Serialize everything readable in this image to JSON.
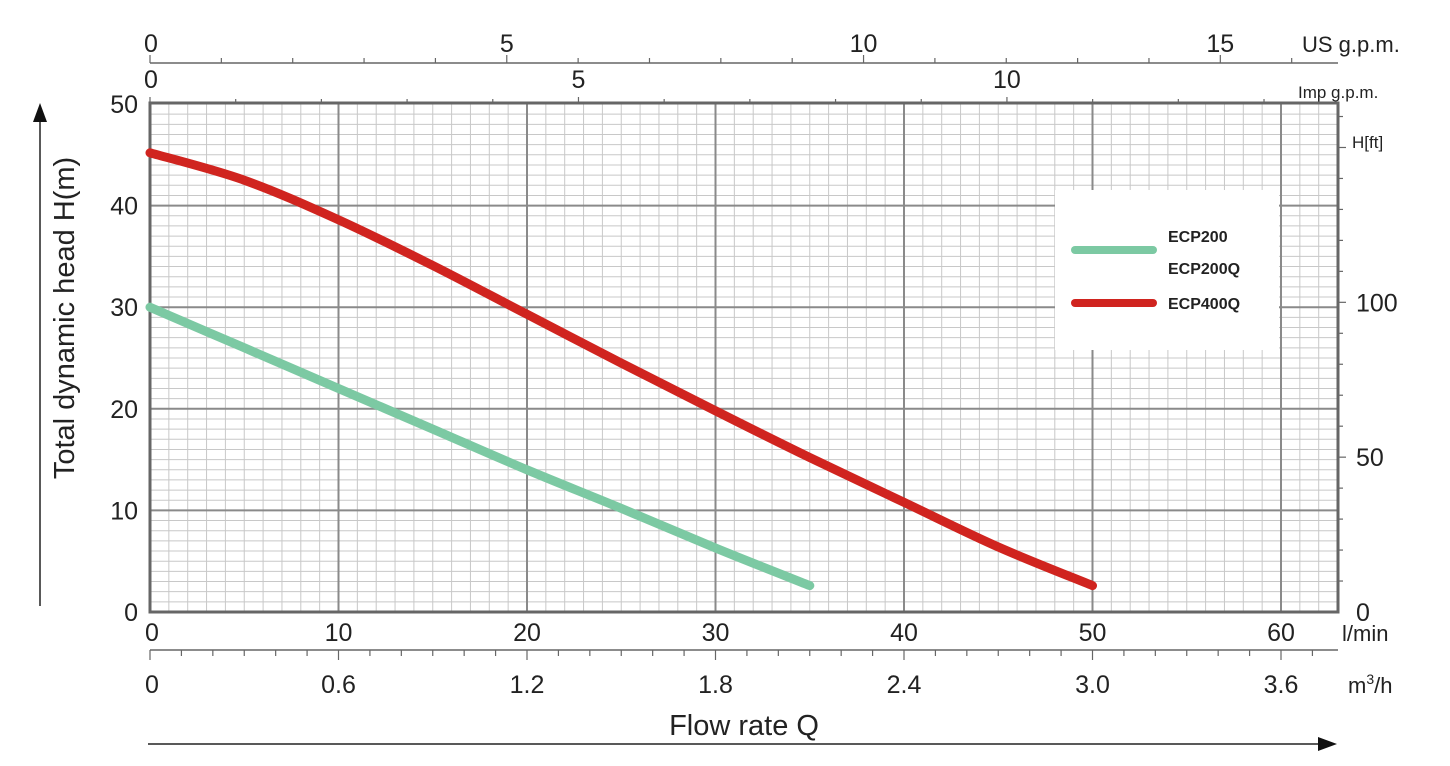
{
  "chart_data": {
    "type": "line",
    "y_axis": {
      "label": "Total dynamic head H(m)",
      "range": [
        0,
        50
      ],
      "ticks": [
        "0",
        "10",
        "20",
        "30",
        "40",
        "50"
      ]
    },
    "y_axis_right": {
      "label": "H[ft]",
      "ticks": [
        {
          "value": 0,
          "text": "0"
        },
        {
          "value": 50,
          "text": "50"
        },
        {
          "value": 100,
          "text": "100"
        }
      ]
    },
    "x_axis": {
      "label": "Flow rate Q",
      "unit": "l/min",
      "range": [
        0,
        63
      ],
      "ticks": [
        "0",
        "10",
        "20",
        "30",
        "40",
        "50",
        "60"
      ]
    },
    "x_axis_m3h": {
      "unit_base": "m",
      "unit_sup": "3",
      "unit_tail": "/h",
      "ticks": [
        {
          "value": 0,
          "text": "0"
        },
        {
          "value": 0.6,
          "text": "0.6"
        },
        {
          "value": 1.2,
          "text": "1.2"
        },
        {
          "value": 1.8,
          "text": "1.8"
        },
        {
          "value": 2.4,
          "text": "2.4"
        },
        {
          "value": 3.0,
          "text": "3.0"
        },
        {
          "value": 3.6,
          "text": "3.6"
        }
      ]
    },
    "x_axis_us_gpm": {
      "unit": "US g.p.m.",
      "ticks": [
        {
          "value": 0,
          "text": "0"
        },
        {
          "value": 5,
          "text": "5"
        },
        {
          "value": 10,
          "text": "10"
        },
        {
          "value": 15,
          "text": "15"
        }
      ]
    },
    "x_axis_imp_gpm": {
      "unit": "Imp g.p.m.",
      "ticks": [
        {
          "value": 0,
          "text": "0"
        },
        {
          "value": 5,
          "text": "5"
        },
        {
          "value": 10,
          "text": "10"
        }
      ]
    },
    "series": [
      {
        "name": "ECP200",
        "legend_lines": [
          "ECP200",
          "ECP200Q"
        ],
        "color": "#7cc9a3",
        "points": [
          [
            0,
            30
          ],
          [
            5,
            26
          ],
          [
            10,
            22
          ],
          [
            15,
            18
          ],
          [
            20,
            14
          ],
          [
            25,
            10.2
          ],
          [
            30,
            6.3
          ],
          [
            35,
            2.6
          ]
        ]
      },
      {
        "name": "ECP400Q",
        "legend_lines": [
          "ECP400Q"
        ],
        "color": "#d0241f",
        "points": [
          [
            0,
            45.2
          ],
          [
            5,
            42.5
          ],
          [
            10,
            38.6
          ],
          [
            15,
            34.1
          ],
          [
            20,
            29.3
          ],
          [
            25,
            24.5
          ],
          [
            30,
            19.8
          ],
          [
            35,
            15.2
          ],
          [
            40,
            10.8
          ],
          [
            45,
            6.4
          ],
          [
            50,
            2.6
          ]
        ]
      }
    ]
  }
}
